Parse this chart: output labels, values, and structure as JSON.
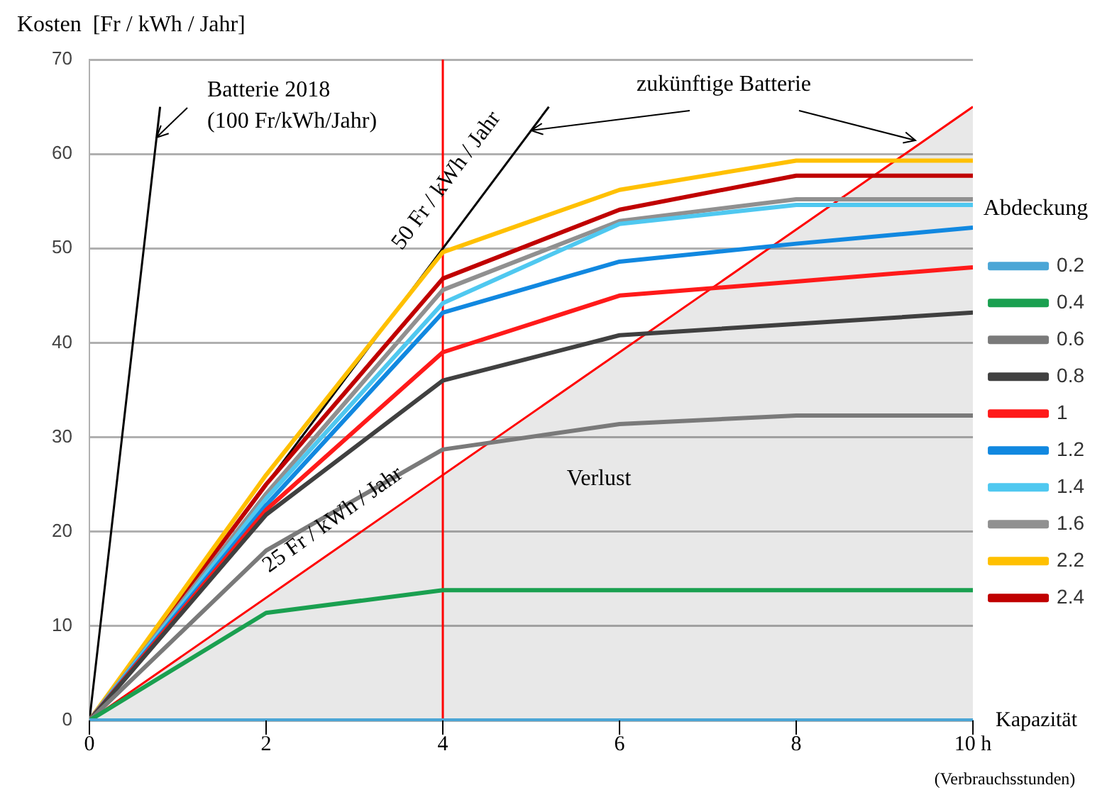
{
  "chart_data": {
    "type": "line",
    "ylabel": "Kosten  [Fr / kWh / Jahr]",
    "xlabel": "Kapazität",
    "legend_title": "Abdeckung",
    "legend": "right",
    "grid": "y",
    "marker": "none",
    "line_style": "solid",
    "x": [
      0,
      2,
      4,
      6,
      8,
      10
    ],
    "xlim": [
      0,
      10
    ],
    "xticks": [
      0,
      2,
      4,
      6,
      8,
      {
        "value": 10,
        "label": "10 h"
      }
    ],
    "ylim": [
      0,
      70
    ],
    "yticks": [
      0,
      10,
      20,
      30,
      40,
      50,
      60,
      70
    ],
    "series": [
      {
        "name": "0.2",
        "color": "#4ba6d6",
        "values": [
          0,
          0,
          0,
          0,
          0,
          0
        ]
      },
      {
        "name": "0.4",
        "color": "#1aa050",
        "values": [
          0,
          11.4,
          13.8,
          13.8,
          13.8,
          13.8
        ]
      },
      {
        "name": "0.6",
        "color": "#7a7a7a",
        "values": [
          0,
          18,
          28.7,
          31.4,
          32.3,
          32.3
        ]
      },
      {
        "name": "0.8",
        "color": "#404040",
        "values": [
          0,
          21.8,
          36,
          40.8,
          42,
          43.2
        ]
      },
      {
        "name": "1",
        "color": "#ff1a1a",
        "values": [
          0,
          22.3,
          39,
          45,
          46.5,
          48
        ]
      },
      {
        "name": "1.2",
        "color": "#1188e0",
        "values": [
          0,
          22.8,
          43.2,
          48.6,
          50.5,
          52.2
        ]
      },
      {
        "name": "1.4",
        "color": "#4fc8f0",
        "values": [
          0,
          23.5,
          44.2,
          52.6,
          54.6,
          54.6
        ]
      },
      {
        "name": "1.6",
        "color": "#909090",
        "values": [
          0,
          24,
          45.6,
          52.9,
          55.2,
          55.2
        ]
      },
      {
        "name": "2.2",
        "color": "#ffc000",
        "values": [
          0,
          26,
          49.6,
          56.2,
          59.3,
          59.3
        ]
      },
      {
        "name": "2.4",
        "color": "#c00000",
        "values": [
          0,
          25,
          46.8,
          54.1,
          57.7,
          57.7
        ]
      },
      {
        "type": "area",
        "color": "#ff0000",
        "x": [
          0,
          10
        ],
        "values": [
          0,
          65
        ]
      },
      {
        "type": "line",
        "color": "#000000",
        "x": [
          0.8,
          0,
          5.2
        ],
        "values": [
          65,
          0,
          65
        ]
      }
    ],
    "ref_lines": [
      {
        "axis": "x",
        "value": 4,
        "color": "#ff0000"
      }
    ],
    "annotations": [
      {
        "text": "Batterie 2018\n(100 Fr/kWh/Jahr)",
        "x": 0.76,
        "y": 61.75
      },
      {
        "text": "zukünftige Batterie",
        "x": 5,
        "y": 62.5
      },
      "Verlust",
      "(Verbrauchsstunden)",
      "25 Fr / kWh / Jahr",
      "50 Fr / kWh / Jahr"
    ]
  }
}
